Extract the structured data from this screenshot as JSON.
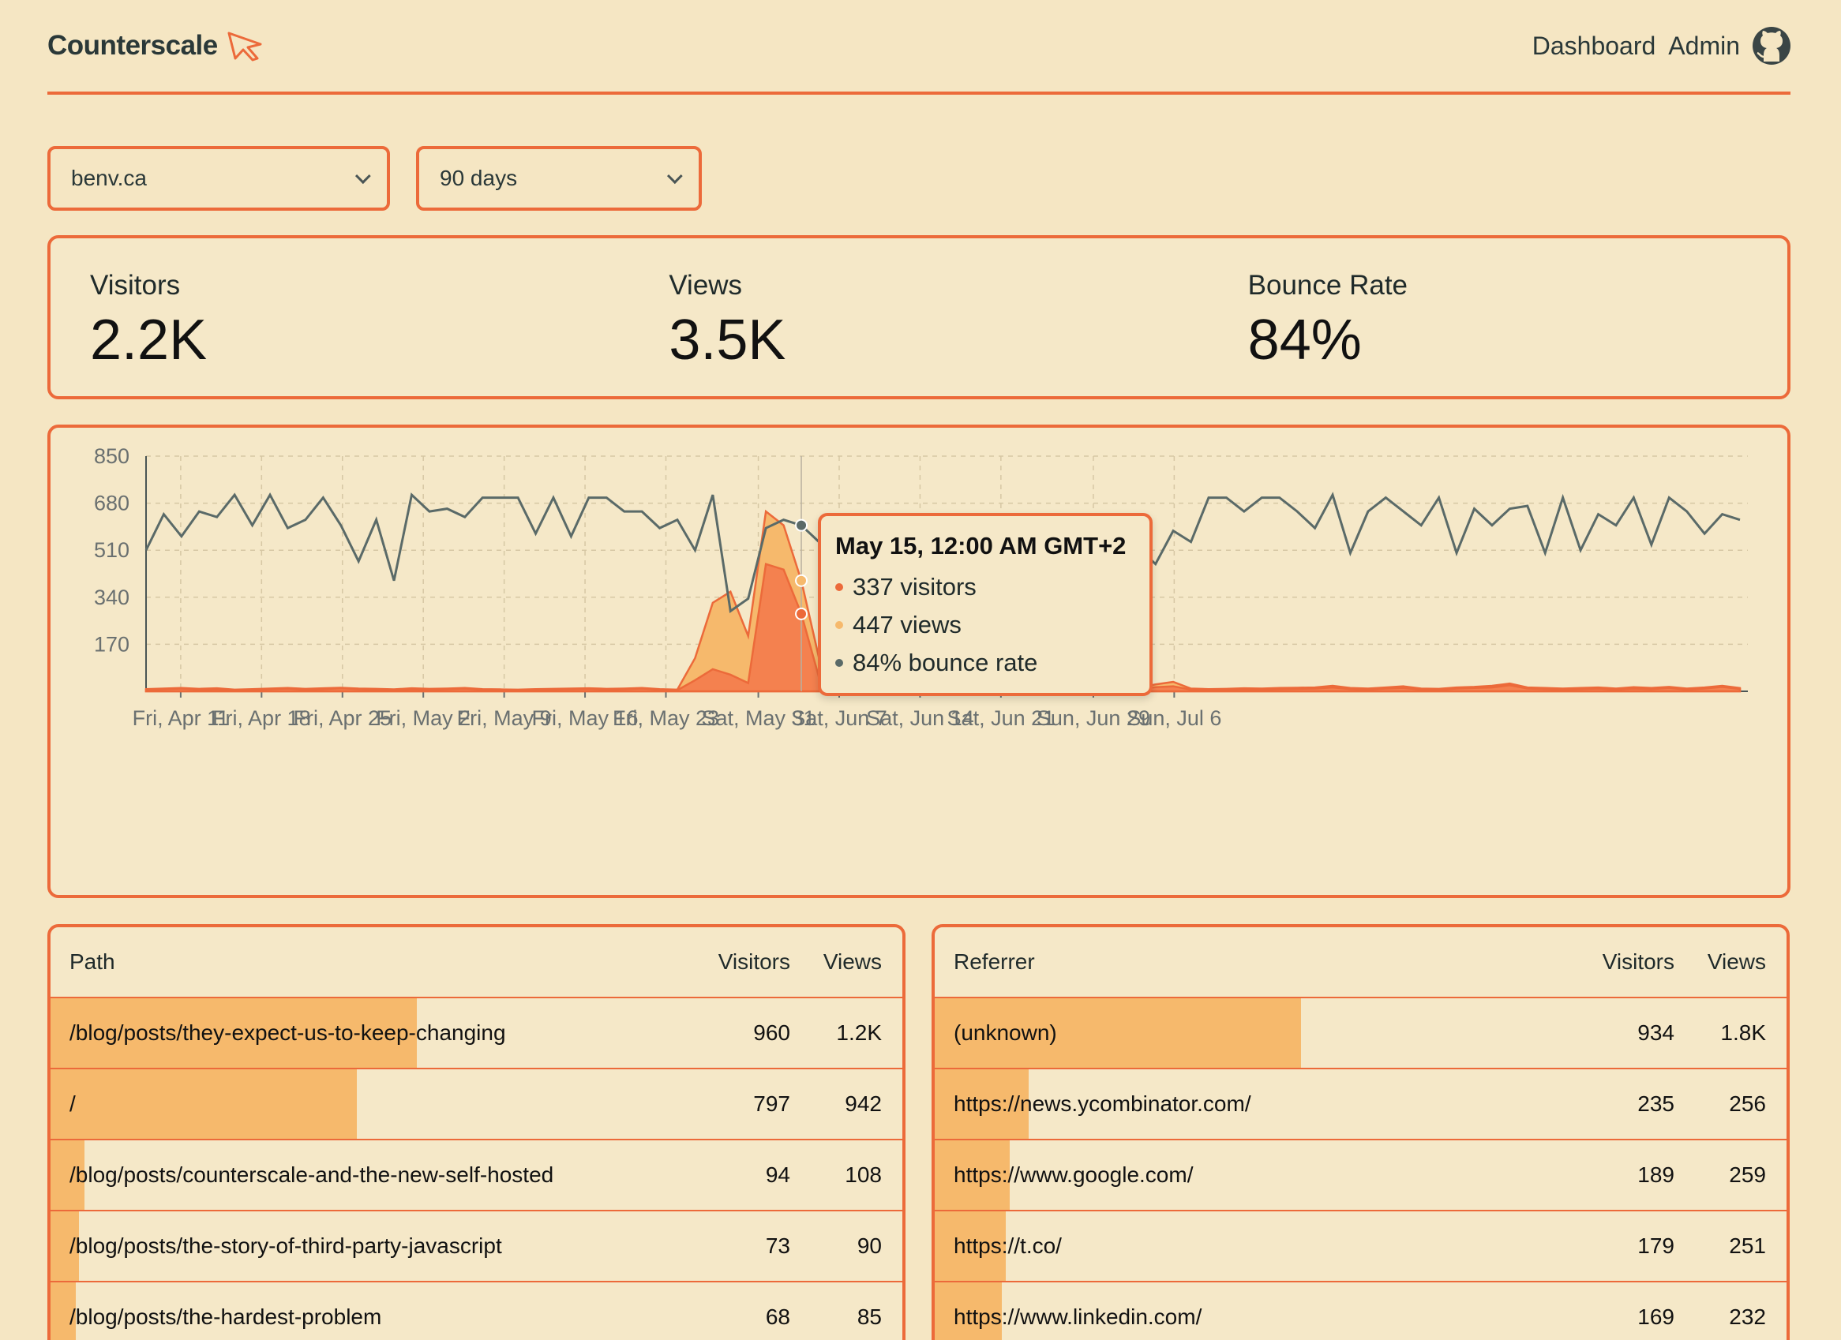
{
  "header": {
    "brand": "Counterscale",
    "nav": [
      "Dashboard",
      "Admin"
    ]
  },
  "filters": {
    "site": "benv.ca",
    "range": "90 days"
  },
  "stats": [
    {
      "label": "Visitors",
      "value": "2.2K"
    },
    {
      "label": "Views",
      "value": "3.5K"
    },
    {
      "label": "Bounce Rate",
      "value": "84%"
    }
  ],
  "tooltip": {
    "title": "May 15, 12:00 AM GMT+2",
    "visitors": "337 visitors",
    "views": "447 views",
    "bounce": "84% bounce rate"
  },
  "colors": {
    "accent": "#ec6a3a",
    "views_fill": "#f6b96c",
    "visitors_fill": "#f4814f",
    "bounce_line": "#5a6a68"
  },
  "chart_data": {
    "type": "line",
    "yticks": [
      850,
      680,
      510,
      340,
      170
    ],
    "ylim": [
      0,
      850
    ],
    "xticks": [
      "Fri, Apr 11",
      "Fri, Apr 18",
      "Fri, Apr 25",
      "Fri, May 2",
      "Fri, May 9",
      "Fri, May 16",
      "Fri, May 23",
      "Sat, May 31",
      "Sat, Jun 7",
      "Sat, Jun 14",
      "Sat, Jun 21",
      "Sun, Jun 29",
      "Sun, Jul 6"
    ],
    "xtick_index": [
      3,
      10,
      17,
      24,
      31,
      38,
      45,
      53,
      60,
      67,
      74,
      82,
      89
    ],
    "series": [
      {
        "name": "views",
        "values": [
          8,
          10,
          12,
          9,
          11,
          6,
          8,
          10,
          12,
          9,
          11,
          13,
          10,
          9,
          7,
          11,
          9,
          10,
          12,
          8,
          7,
          6,
          8,
          9,
          10,
          11,
          9,
          10,
          12,
          8,
          6,
          120,
          320,
          360,
          200,
          650,
          600,
          400,
          120,
          30,
          12,
          18,
          20,
          10,
          14,
          40,
          22,
          16,
          12,
          14,
          10,
          16,
          12,
          10,
          14,
          9,
          12,
          25,
          34,
          10,
          8,
          9,
          11,
          10,
          12,
          13,
          14,
          20,
          12,
          10,
          14,
          18,
          10,
          9,
          14,
          16,
          20,
          28,
          14,
          12,
          10,
          12,
          14,
          10,
          15,
          12,
          16,
          10,
          14,
          20,
          12
        ],
        "note_removed": true
      },
      {
        "values": [
          5,
          8,
          10,
          6,
          8,
          4,
          6,
          8,
          10,
          6,
          8,
          11,
          8,
          6,
          5,
          8,
          6,
          8,
          10,
          6,
          5,
          4,
          6,
          7,
          8,
          9,
          6,
          8,
          10,
          6,
          4,
          40,
          80,
          60,
          30,
          460,
          440,
          280,
          50,
          20,
          8,
          12,
          16,
          6,
          10,
          26,
          14,
          10,
          8,
          10,
          6,
          10,
          8,
          6,
          10,
          6,
          8,
          15,
          18,
          6,
          5,
          6,
          8,
          6,
          8,
          9,
          10,
          14,
          8,
          6,
          10,
          12,
          6,
          5,
          10,
          12,
          14,
          22,
          10,
          8,
          6,
          8,
          10,
          6,
          10,
          8,
          12,
          6,
          10,
          16,
          8
        ]
      },
      {
        "values": [
          510,
          640,
          560,
          650,
          630,
          710,
          600,
          710,
          590,
          620,
          700,
          600,
          470,
          620,
          400,
          710,
          650,
          660,
          630,
          700,
          700,
          700,
          570,
          700,
          560,
          700,
          700,
          650,
          650,
          590,
          620,
          510,
          710,
          290,
          335,
          590,
          620,
          600,
          540,
          510,
          570,
          580,
          570,
          560,
          540,
          580,
          560,
          540,
          580,
          560,
          570,
          590,
          570,
          560,
          600,
          590,
          520,
          460,
          580,
          540,
          700,
          700,
          650,
          700,
          700,
          650,
          590,
          710,
          500,
          650,
          700,
          650,
          600,
          700,
          500,
          660,
          600,
          660,
          670,
          500,
          700,
          510,
          640,
          600,
          700,
          530,
          700,
          650,
          570,
          640,
          620
        ]
      }
    ]
  },
  "paths_table": {
    "headers": [
      "Path",
      "Visitors",
      "Views"
    ],
    "rows": [
      {
        "label": "/blog/posts/they-expect-us-to-keep-changing",
        "visitors": "960",
        "views": "1.2K",
        "share": 0.43
      },
      {
        "label": "/",
        "visitors": "797",
        "views": "942",
        "share": 0.36
      },
      {
        "label": "/blog/posts/counterscale-and-the-new-self-hosted",
        "visitors": "94",
        "views": "108",
        "share": 0.04
      },
      {
        "label": "/blog/posts/the-story-of-third-party-javascript",
        "visitors": "73",
        "views": "90",
        "share": 0.033
      },
      {
        "label": "/blog/posts/the-hardest-problem",
        "visitors": "68",
        "views": "85",
        "share": 0.03
      }
    ]
  },
  "referrers_table": {
    "headers": [
      "Referrer",
      "Visitors",
      "Views"
    ],
    "rows": [
      {
        "label": "(unknown)",
        "visitors": "934",
        "views": "1.8K",
        "share": 0.43
      },
      {
        "label": "https://news.ycombinator.com/",
        "visitors": "235",
        "views": "256",
        "share": 0.11
      },
      {
        "label": "https://www.google.com/",
        "visitors": "189",
        "views": "259",
        "share": 0.088
      },
      {
        "label": "https://t.co/",
        "visitors": "179",
        "views": "251",
        "share": 0.083
      },
      {
        "label": "https://www.linkedin.com/",
        "visitors": "169",
        "views": "232",
        "share": 0.079
      }
    ]
  }
}
